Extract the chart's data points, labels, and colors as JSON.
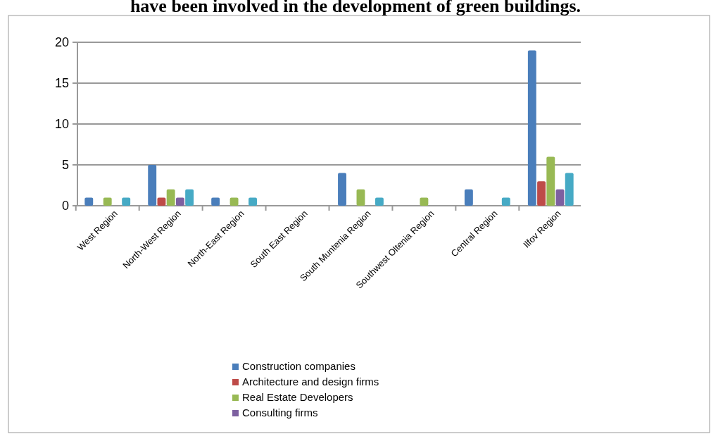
{
  "chart_data": {
    "type": "bar",
    "title": "have been involved in the development of green buildings.",
    "categories": [
      "West Region",
      "North-West Region",
      "North-East Region",
      "South East Region",
      "South Muntenia Region",
      "Southwest Oltenia Region",
      "Central Region",
      "Ilfov Region"
    ],
    "series": [
      {
        "name": "Construction companies",
        "color": "#4a7ebb",
        "values": [
          1,
          5,
          1,
          0,
          4,
          0,
          2,
          19
        ]
      },
      {
        "name": "Architecture and design firms",
        "color": "#be4b48",
        "values": [
          0,
          1,
          0,
          0,
          0,
          0,
          0,
          3
        ]
      },
      {
        "name": "Real Estate Developers",
        "color": "#98b954",
        "values": [
          1,
          2,
          1,
          0,
          2,
          1,
          0,
          6
        ]
      },
      {
        "name": "Consulting firms",
        "color": "#7d60a0",
        "values": [
          0,
          1,
          0,
          0,
          0,
          0,
          0,
          2
        ]
      },
      {
        "color": "#46aac5",
        "values": [
          1,
          2,
          1,
          0,
          1,
          0,
          1,
          4
        ]
      }
    ],
    "ylim": [
      0,
      20
    ],
    "yticks": [
      0,
      5,
      10,
      15,
      20
    ],
    "grid": "y",
    "legend": "bottom"
  }
}
